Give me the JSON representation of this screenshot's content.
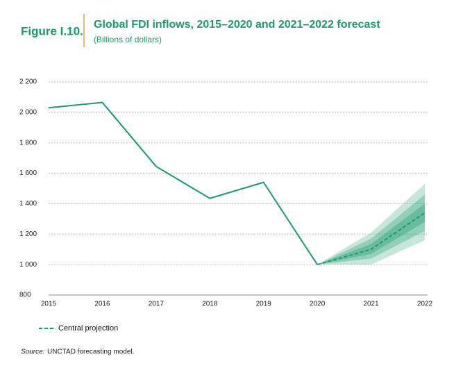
{
  "figure_label": "Figure I.10.",
  "chart_data": {
    "type": "line",
    "title": "Global FDI inflows, 2015–2020 and 2021–2022 forecast",
    "subtitle": "(Billions of dollars)",
    "x": [
      2015,
      2016,
      2017,
      2018,
      2019,
      2020,
      2021,
      2022
    ],
    "xlim": [
      2015,
      2022
    ],
    "xticks": [
      2015,
      2016,
      2017,
      2018,
      2019,
      2020,
      2021,
      2022
    ],
    "ylim": [
      800,
      2200
    ],
    "yticks": [
      {
        "value": 800,
        "label": "800"
      },
      {
        "value": 1000,
        "label": "1 000"
      },
      {
        "value": 1200,
        "label": "1 200"
      },
      {
        "value": 1400,
        "label": "1 400"
      },
      {
        "value": 1600,
        "label": "1 600"
      },
      {
        "value": 1800,
        "label": "1 800"
      },
      {
        "value": 2000,
        "label": "2 000"
      },
      {
        "value": 2200,
        "label": "2 200"
      }
    ],
    "grid": true,
    "color": "#1a9b6c",
    "actual": {
      "values": [
        2030,
        2065,
        1645,
        1435,
        1540,
        1000,
        null,
        null
      ]
    },
    "series": [
      {
        "name": "Central projection",
        "color": "#1a9b6c",
        "dashed": true,
        "values": [
          null,
          null,
          null,
          null,
          null,
          1000,
          1100,
          1340
        ]
      }
    ],
    "bands": [
      {
        "opacity": 0.25,
        "lower": [
          null,
          null,
          null,
          null,
          null,
          1000,
          1000,
          1160
        ],
        "upper": [
          null,
          null,
          null,
          null,
          null,
          1000,
          1210,
          1530
        ]
      },
      {
        "opacity": 0.3,
        "lower": [
          null,
          null,
          null,
          null,
          null,
          1000,
          1040,
          1220
        ],
        "upper": [
          null,
          null,
          null,
          null,
          null,
          1000,
          1170,
          1460
        ]
      },
      {
        "opacity": 0.35,
        "lower": [
          null,
          null,
          null,
          null,
          null,
          1000,
          1070,
          1280
        ],
        "upper": [
          null,
          null,
          null,
          null,
          null,
          1000,
          1135,
          1400
        ]
      }
    ]
  },
  "source": {
    "label": "Source:",
    "text": "UNCTAD forecasting model."
  }
}
